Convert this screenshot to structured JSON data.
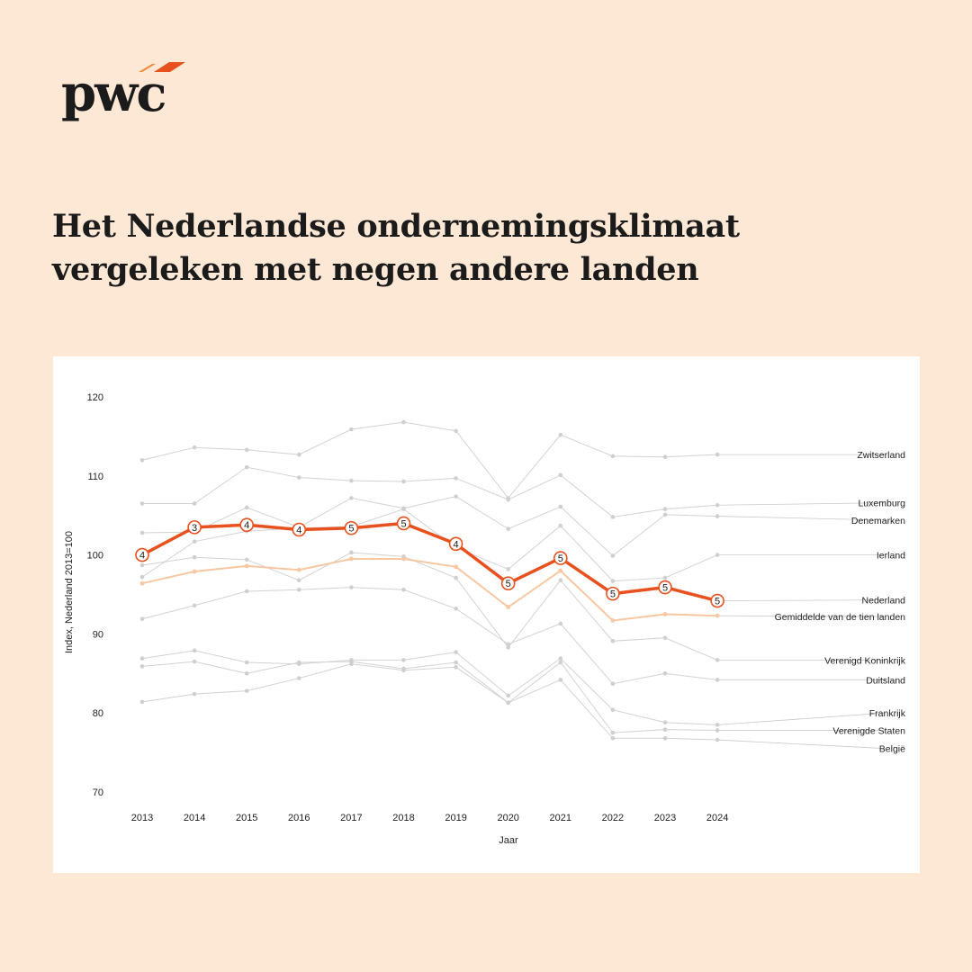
{
  "logo": {
    "text": "pwc"
  },
  "title": "Het Nederlandse ondernemingsklimaat vergeleken met negen andere landen",
  "colors": {
    "background": "#fde7d5",
    "accent": "#e8501d",
    "average": "#f7c7a1",
    "other": "#d0d0d0",
    "text": "#1b1b1b"
  },
  "chart_data": {
    "type": "line",
    "xlabel": "Jaar",
    "ylabel": "Index, Nederland 2013=100",
    "ylim": [
      70,
      120
    ],
    "yticks": [
      70,
      80,
      90,
      100,
      110,
      120
    ],
    "x": [
      "2013",
      "2014",
      "2015",
      "2016",
      "2017",
      "2018",
      "2019",
      "2020",
      "2021",
      "2022",
      "2023",
      "2024"
    ],
    "grid": false,
    "legend": "direct labels at right end",
    "series": [
      {
        "name": "Zwitserland",
        "role": "other",
        "values": [
          112.0,
          113.6,
          113.3,
          112.7,
          115.9,
          116.8,
          115.7,
          107.2,
          115.2,
          112.5,
          112.4,
          112.7
        ]
      },
      {
        "name": "Luxemburg",
        "role": "other",
        "values": [
          106.5,
          106.5,
          111.1,
          109.8,
          109.4,
          109.3,
          109.7,
          107.0,
          110.1,
          104.8,
          105.8,
          106.3
        ]
      },
      {
        "name": "Denemarken",
        "role": "other",
        "values": [
          102.8,
          102.9,
          106.0,
          103.5,
          107.2,
          105.9,
          107.4,
          103.3,
          106.1,
          99.9,
          105.1,
          104.9
        ]
      },
      {
        "name": "Ierland",
        "role": "other",
        "values": [
          97.2,
          101.7,
          103.0,
          103.4,
          103.6,
          105.8,
          100.9,
          98.2,
          103.7,
          96.7,
          97.1,
          100.0
        ]
      },
      {
        "name": "Verenigd Koninkrijk",
        "role": "other",
        "values": [
          98.7,
          99.7,
          99.4,
          96.8,
          100.3,
          99.8,
          97.1,
          88.3,
          96.8,
          89.1,
          89.5,
          86.7
        ]
      },
      {
        "name": "Duitsland",
        "role": "other",
        "values": [
          91.9,
          93.6,
          95.4,
          95.6,
          95.9,
          95.6,
          93.2,
          88.7,
          91.3,
          83.7,
          85.0,
          84.2
        ]
      },
      {
        "name": "Frankrijk",
        "role": "other",
        "values": [
          86.9,
          87.9,
          86.4,
          86.2,
          86.7,
          86.7,
          87.7,
          82.2,
          86.9,
          80.4,
          78.8,
          78.5
        ]
      },
      {
        "name": "Verenigde Staten",
        "role": "other",
        "values": [
          85.9,
          86.5,
          85.0,
          86.4,
          86.5,
          85.6,
          86.4,
          81.3,
          86.4,
          77.5,
          77.9,
          77.8
        ]
      },
      {
        "name": "België",
        "role": "other",
        "values": [
          81.4,
          82.4,
          82.8,
          84.4,
          86.2,
          85.4,
          85.8,
          81.3,
          84.2,
          76.8,
          76.8,
          76.6
        ]
      },
      {
        "name": "Gemiddelde van de tien landen",
        "role": "average",
        "values": [
          96.4,
          97.9,
          98.6,
          98.1,
          99.5,
          99.5,
          98.5,
          93.4,
          98.0,
          91.7,
          92.5,
          92.3
        ]
      },
      {
        "name": "Nederland",
        "role": "highlight",
        "values": [
          100.0,
          103.5,
          103.8,
          103.2,
          103.4,
          104.0,
          101.4,
          96.4,
          99.6,
          95.1,
          95.9,
          94.2
        ],
        "ranks": [
          "4",
          "3",
          "4",
          "4",
          "5",
          "5",
          "4",
          "5",
          "5",
          "5",
          "5",
          "5"
        ]
      }
    ],
    "labels": [
      {
        "series": "Zwitserland",
        "value": 112.7
      },
      {
        "series": "Luxemburg",
        "value": 106.6
      },
      {
        "series": "Denemarken",
        "value": 104.4
      },
      {
        "series": "Ierland",
        "value": 100.0
      },
      {
        "series": "Nederland",
        "value": 94.3
      },
      {
        "series": "Gemiddelde van de tien landen",
        "value": 92.2
      },
      {
        "series": "Verenigd Koninkrijk",
        "value": 86.7
      },
      {
        "series": "Duitsland",
        "value": 84.2
      },
      {
        "series": "Frankrijk",
        "value": 80.0
      },
      {
        "series": "Verenigde Staten",
        "value": 77.8
      },
      {
        "series": "België",
        "value": 75.5
      }
    ]
  }
}
